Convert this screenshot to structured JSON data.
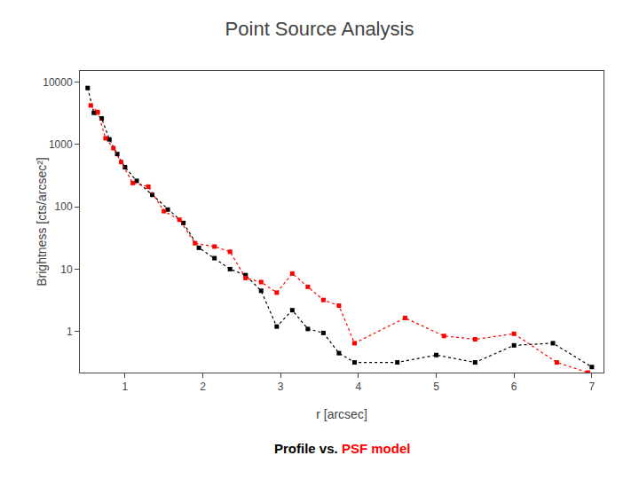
{
  "chart_data": {
    "type": "line",
    "title": "Point Source Analysis",
    "subtitle": "Profile vs. PSF model",
    "xlabel": "r [arcsec]",
    "ylabel": "Brightness [cts/arcsec²]",
    "log": "y",
    "grid": false,
    "marker": "square",
    "line_style": "dotted",
    "series": [
      {
        "name": "Profile",
        "color": "black",
        "x": [
          0.52,
          0.6,
          0.7,
          0.8,
          0.9,
          1.0,
          1.15,
          1.35,
          1.55,
          1.75,
          1.95,
          2.15,
          2.35,
          2.55,
          2.75,
          2.95,
          3.15,
          3.35,
          3.55,
          3.75,
          3.95,
          4.5,
          5.0,
          5.5,
          6.0,
          6.5,
          7.0
        ],
        "values": [
          8000,
          3200,
          2600,
          1200,
          700,
          430,
          260,
          155,
          90,
          55,
          22,
          15,
          10,
          8,
          4.5,
          1.2,
          2.2,
          1.1,
          0.95,
          0.45,
          0.32,
          0.32,
          0.42,
          0.32,
          0.6,
          0.65,
          0.27
        ]
      },
      {
        "name": "PSF model",
        "color": "red",
        "x": [
          0.56,
          0.65,
          0.75,
          0.85,
          0.95,
          1.1,
          1.3,
          1.5,
          1.7,
          1.9,
          2.15,
          2.35,
          2.55,
          2.75,
          2.95,
          3.15,
          3.35,
          3.55,
          3.75,
          3.95,
          4.6,
          5.1,
          5.5,
          6.0,
          6.55,
          6.95
        ],
        "values": [
          4200,
          3300,
          1250,
          870,
          520,
          240,
          210,
          85,
          62,
          26,
          23,
          19,
          7.2,
          6.2,
          4.2,
          8.5,
          5.2,
          3.2,
          2.6,
          0.65,
          1.65,
          0.85,
          0.75,
          0.92,
          0.32,
          0.22
        ]
      }
    ],
    "xlim": [
      0.42,
      7.15
    ],
    "ylim": [
      0.22,
      15000
    ],
    "xticks": [
      1,
      2,
      3,
      4,
      5,
      6,
      7
    ],
    "yticks": [
      1,
      10,
      100,
      1000,
      10000
    ]
  }
}
